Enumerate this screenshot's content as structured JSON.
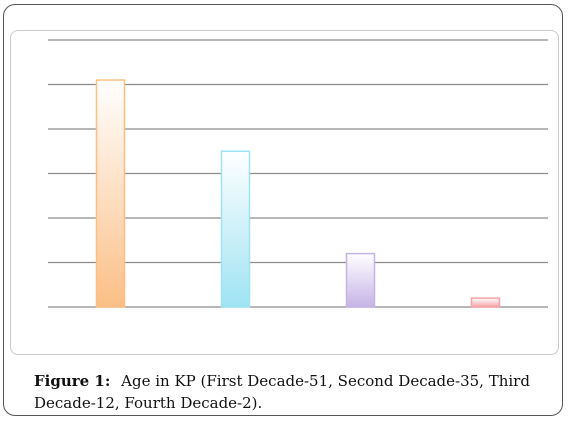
{
  "chart_data": {
    "type": "bar",
    "categories": [
      "First Decade",
      "Second Decade",
      "Third Decade",
      "Fourth Decade"
    ],
    "values": [
      51,
      35,
      12,
      2
    ],
    "ylim": [
      0,
      60
    ],
    "yticks": [
      0,
      10,
      20,
      30,
      40,
      50,
      60
    ],
    "grid": true,
    "colors": [
      "#fbbf86",
      "#9fe3f3",
      "#c5b3e6",
      "#f5a3a6"
    ]
  },
  "caption": {
    "label": "Figure 1:",
    "text": "Age in KP (First Decade-51, Second Decade-35, Third Decade-12, Fourth Decade-2)."
  }
}
